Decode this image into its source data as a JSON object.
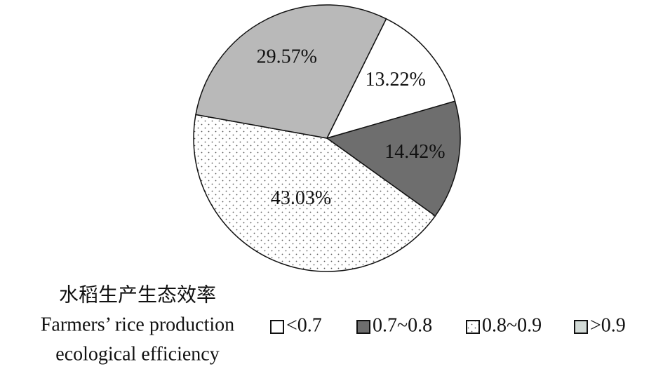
{
  "chart_data": {
    "type": "pie",
    "categories": [
      "<0.7",
      "0.7~0.8",
      "0.8~0.9",
      ">0.9"
    ],
    "values": [
      13.22,
      14.42,
      43.03,
      29.57
    ],
    "value_labels": [
      "13.22%",
      "14.42%",
      "43.03%",
      "29.57%"
    ],
    "colors": [
      "#ffffff",
      "#6e6e6e",
      "#ffffff",
      "#b9b9b9"
    ],
    "legend_colors": [
      "#ffffff",
      "#6e6e6e",
      "#ffffff",
      "#d3dbd7"
    ],
    "patterns": [
      null,
      null,
      "dots",
      null
    ],
    "legend_title": [
      "水稻生产生态效率",
      "Farmers’ rice production",
      "ecological efficiency"
    ],
    "legend": "bottom"
  }
}
